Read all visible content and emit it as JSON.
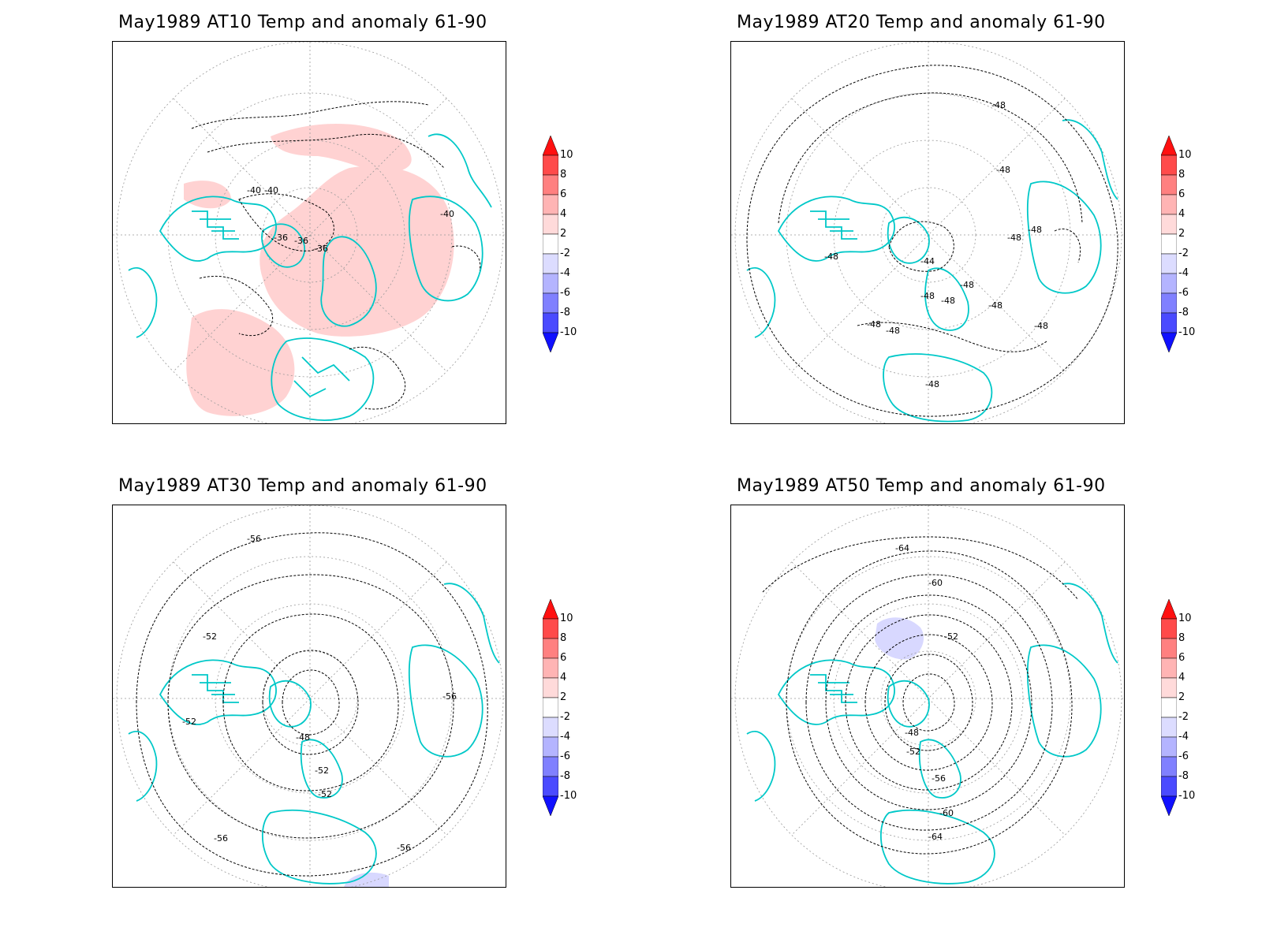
{
  "panels": [
    {
      "id": "at10",
      "title": "May1989 AT10 Temp and anomaly 61-90",
      "contour_labels": [
        "-40",
        "-40",
        "-40",
        "-36",
        "-36",
        "-36"
      ],
      "anomaly_regions": [
        "warm"
      ]
    },
    {
      "id": "at20",
      "title": "May1989 AT20 Temp and anomaly 61-90",
      "contour_labels": [
        "-48",
        "-48",
        "-48",
        "-48",
        "-44",
        "-48",
        "-48",
        "-48",
        "-48",
        "-48",
        "-48",
        "-48",
        "-48",
        "-48"
      ],
      "anomaly_regions": []
    },
    {
      "id": "at30",
      "title": "May1989 AT30 Temp and anomaly 61-90",
      "contour_labels": [
        "-56",
        "-52",
        "-52",
        "-48",
        "-52",
        "-52",
        "-56",
        "-56",
        "-56"
      ],
      "anomaly_regions": [
        "cool"
      ]
    },
    {
      "id": "at50",
      "title": "May1989 AT50 Temp and anomaly 61-90",
      "contour_labels": [
        "-64",
        "-60",
        "-52",
        "-48",
        "-52",
        "-56",
        "-60",
        "-64"
      ],
      "anomaly_regions": [
        "cool"
      ]
    }
  ],
  "colorbar": {
    "labels": [
      "10",
      "8",
      "6",
      "4",
      "2",
      "-2",
      "-4",
      "-6",
      "-8",
      "-10"
    ],
    "colors": [
      "#ff1010",
      "#ff4a4a",
      "#ff8080",
      "#ffb4b4",
      "#ffdada",
      "#ffffff",
      "#dcdcff",
      "#b4b4ff",
      "#8080ff",
      "#4a4aff",
      "#1010ff"
    ]
  },
  "colors": {
    "coastline": "#00c8c8",
    "contour": "#000000",
    "grid": "#999999",
    "warm_fill": "#ffd2d2",
    "cool_fill": "#d8d8ff"
  }
}
